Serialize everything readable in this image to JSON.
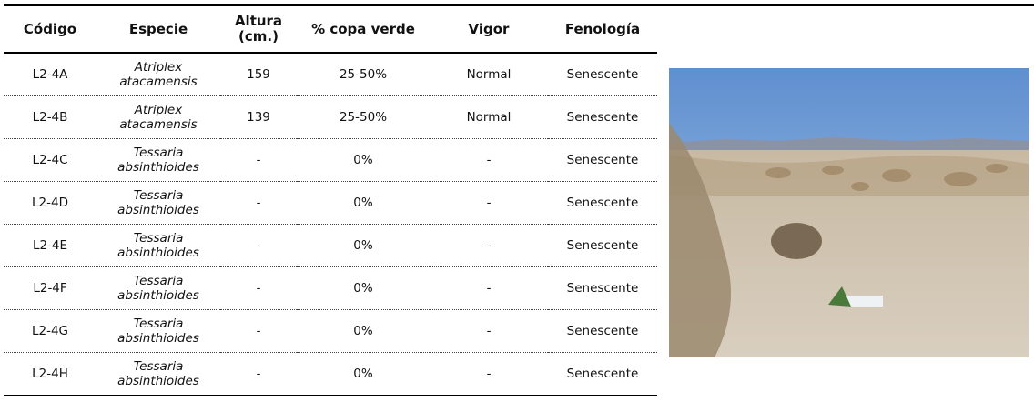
{
  "table": {
    "headers": [
      "Código",
      "Especie",
      "Altura (cm.)",
      "% copa verde",
      "Vigor",
      "Fenología"
    ],
    "rows": [
      [
        "L2-4A",
        "Atriplex atacamensis",
        "159",
        "25-50%",
        "Normal",
        "Senescente"
      ],
      [
        "L2-4B",
        "Atriplex atacamensis",
        "139",
        "25-50%",
        "Normal",
        "Senescente"
      ],
      [
        "L2-4C",
        "Tessaria absinthioides",
        "-",
        "0%",
        "-",
        "Senescente"
      ],
      [
        "L2-4D",
        "Tessaria absinthioides",
        "-",
        "0%",
        "-",
        "Senescente"
      ],
      [
        "L2-4E",
        "Tessaria absinthioides",
        "-",
        "0%",
        "-",
        "Senescente"
      ],
      [
        "L2-4F",
        "Tessaria absinthioides",
        "-",
        "0%",
        "-",
        "Senescente"
      ],
      [
        "L2-4G",
        "Tessaria absinthioides",
        "-",
        "0%",
        "-",
        "Senescente"
      ],
      [
        "L2-4H",
        "Tessaria absinthioides",
        "-",
        "0%",
        "-",
        "Senescente"
      ]
    ]
  }
}
